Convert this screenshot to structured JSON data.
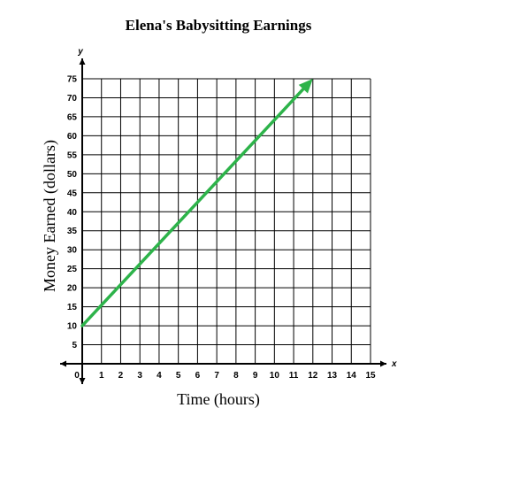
{
  "chart_data": {
    "type": "line",
    "title": "Elena's Babysitting Earnings",
    "xlabel": "Time (hours)",
    "ylabel": "Money Earned (dollars)",
    "x_axis_letter": "x",
    "y_axis_letter": "y",
    "xlim": [
      0,
      15
    ],
    "ylim": [
      0,
      75
    ],
    "x_ticks": [
      "0",
      "1",
      "2",
      "3",
      "4",
      "5",
      "6",
      "7",
      "8",
      "9",
      "10",
      "11",
      "12",
      "13",
      "14",
      "15"
    ],
    "y_ticks": [
      "5",
      "10",
      "15",
      "20",
      "25",
      "30",
      "35",
      "40",
      "45",
      "50",
      "55",
      "60",
      "65",
      "70",
      "75"
    ],
    "grid": true,
    "line_color": "#2db34a",
    "series": [
      {
        "x": [
          0,
          12
        ],
        "y": [
          10,
          75
        ]
      }
    ]
  }
}
